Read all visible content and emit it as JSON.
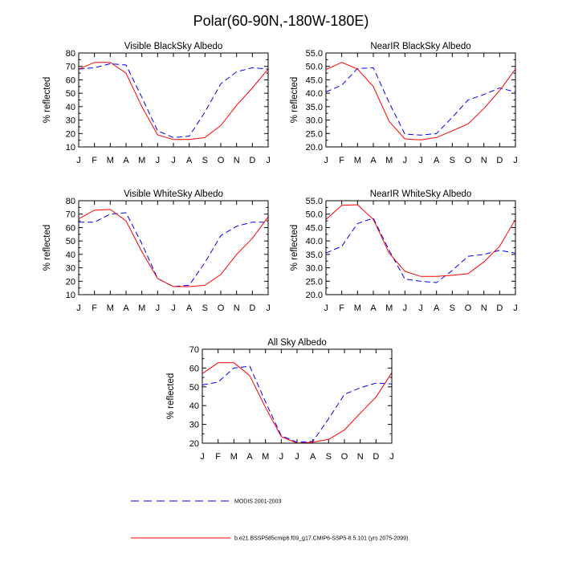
{
  "figure": {
    "title": "Polar(60-90N,-180W-180E)"
  },
  "legend": [
    {
      "label": "MODIS 2001-2003",
      "color": "#0000ff",
      "dash": true
    },
    {
      "label": "b.e21.BSSP585cmip6.f09_g17.CMIP6-SSP5-8.5.101 (yrs 2075-2099)",
      "color": "#ff0000",
      "dash": false
    }
  ],
  "chart_data": [
    {
      "type": "line",
      "title": "Visible BlackSky Albedo",
      "ylabel": "% reflected",
      "categories": [
        "J",
        "F",
        "M",
        "A",
        "M",
        "J",
        "J",
        "A",
        "S",
        "O",
        "N",
        "D",
        "J"
      ],
      "ylim": [
        10,
        80
      ],
      "yticks": [
        "10",
        "20",
        "30",
        "40",
        "50",
        "60",
        "70",
        "80"
      ],
      "series": [
        {
          "values": [
            68,
            69,
            72,
            71,
            47,
            22,
            17,
            18,
            36,
            57,
            66,
            69,
            68
          ],
          "color": "#0000ff",
          "dash": true
        },
        {
          "values": [
            68,
            73,
            73,
            65,
            40,
            19,
            15.5,
            15.5,
            17,
            26,
            41,
            54,
            68
          ],
          "color": "#ff0000",
          "dash": false
        }
      ]
    },
    {
      "type": "line",
      "title": "NearIR BlackSky Albedo",
      "ylabel": "% reflected",
      "categories": [
        "J",
        "F",
        "M",
        "A",
        "M",
        "J",
        "J",
        "A",
        "S",
        "O",
        "N",
        "D",
        "J"
      ],
      "ylim": [
        20,
        55
      ],
      "yticks": [
        "20.0",
        "25.0",
        "30.0",
        "35.0",
        "40.0",
        "45.0",
        "50.0",
        "55.0"
      ],
      "series": [
        {
          "values": [
            40.5,
            43,
            49.2,
            49.5,
            36.5,
            24.8,
            24.4,
            25,
            31,
            37.5,
            39.5,
            42,
            40.5
          ],
          "color": "#0000ff",
          "dash": true
        },
        {
          "values": [
            48.8,
            51.5,
            49,
            42.5,
            29.5,
            23,
            22.6,
            23.5,
            26,
            28.6,
            34.3,
            41,
            49
          ],
          "color": "#ff0000",
          "dash": false
        }
      ]
    },
    {
      "type": "line",
      "title": "Visible WhiteSky Albedo",
      "ylabel": "% reflected",
      "categories": [
        "J",
        "F",
        "M",
        "A",
        "M",
        "J",
        "J",
        "A",
        "S",
        "O",
        "N",
        "D",
        "J"
      ],
      "ylim": [
        10,
        80
      ],
      "yticks": [
        "10",
        "20",
        "30",
        "40",
        "50",
        "60",
        "70",
        "80"
      ],
      "series": [
        {
          "values": [
            64,
            64,
            70,
            71,
            48,
            22,
            16,
            17,
            34,
            54,
            61,
            64,
            64
          ],
          "color": "#0000ff",
          "dash": true
        },
        {
          "values": [
            66.5,
            73,
            73.5,
            65,
            42,
            22,
            16,
            16,
            17,
            25,
            40,
            52,
            68
          ],
          "color": "#ff0000",
          "dash": false
        }
      ]
    },
    {
      "type": "line",
      "title": "NearIR WhiteSky Albedo",
      "ylabel": "% reflected",
      "categories": [
        "J",
        "F",
        "M",
        "A",
        "M",
        "J",
        "J",
        "A",
        "S",
        "O",
        "N",
        "D",
        "J"
      ],
      "ylim": [
        20,
        55
      ],
      "yticks": [
        "20.0",
        "25.0",
        "30.0",
        "35.0",
        "40.0",
        "45.0",
        "50.0",
        "55.0"
      ],
      "series": [
        {
          "values": [
            35.5,
            38,
            46.5,
            48.5,
            36.5,
            25.8,
            25,
            24.5,
            29,
            34.3,
            35,
            36.5,
            35.5
          ],
          "color": "#0000ff",
          "dash": true
        },
        {
          "values": [
            48,
            53.3,
            53.5,
            48,
            35.5,
            28.7,
            26.8,
            26.8,
            27.2,
            27.8,
            32.2,
            38,
            48
          ],
          "color": "#ff0000",
          "dash": false
        }
      ]
    },
    {
      "type": "line",
      "title": "All Sky Albedo",
      "ylabel": "% reflected",
      "categories": [
        "J",
        "F",
        "M",
        "A",
        "M",
        "J",
        "J",
        "A",
        "S",
        "O",
        "N",
        "D",
        "J"
      ],
      "ylim": [
        20,
        70
      ],
      "yticks": [
        "20",
        "30",
        "40",
        "50",
        "60",
        "70"
      ],
      "series": [
        {
          "values": [
            51,
            52.5,
            60,
            61,
            42,
            24,
            20.5,
            21,
            33,
            46,
            49.5,
            52,
            51.5
          ],
          "color": "#0000ff",
          "dash": true
        },
        {
          "values": [
            57,
            62.8,
            62.8,
            56,
            39,
            23.5,
            20,
            20.5,
            22,
            27,
            36,
            44.5,
            57.5
          ],
          "color": "#ff0000",
          "dash": false
        }
      ]
    }
  ]
}
